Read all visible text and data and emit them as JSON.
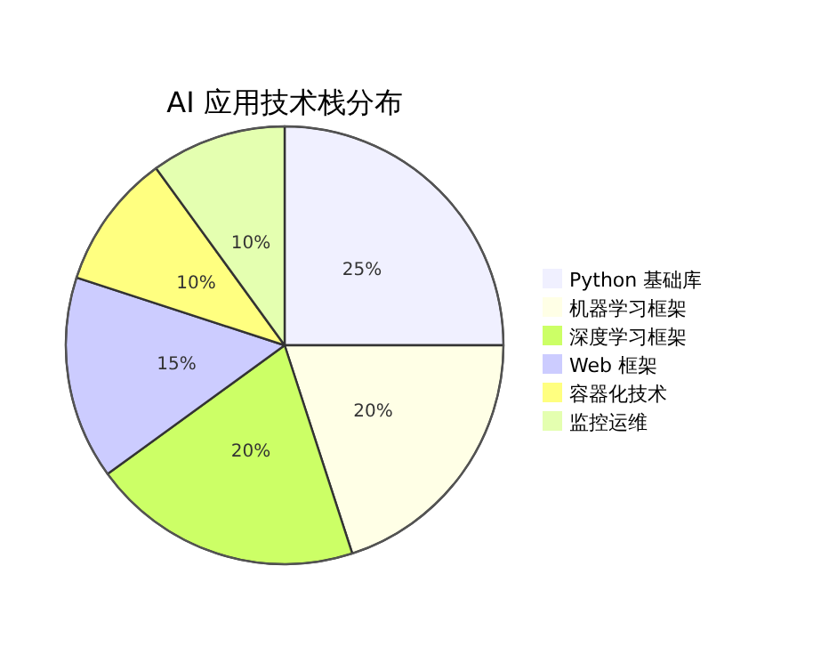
{
  "chart_data": {
    "type": "pie",
    "title": "AI 应用技术栈分布",
    "categories": [
      "Python 基础库",
      "机器学习框架",
      "深度学习框架",
      "Web 框架",
      "容器化技术",
      "监控运维"
    ],
    "values": [
      25,
      20,
      20,
      15,
      10,
      10
    ],
    "colors": [
      "#f0f0ff",
      "#ffffe6",
      "#ccff66",
      "#ccccff",
      "#ffff80",
      "#e4ffb0"
    ],
    "value_labels": [
      "25%",
      "20%",
      "20%",
      "15%",
      "10%",
      "10%"
    ],
    "legend": "right"
  }
}
